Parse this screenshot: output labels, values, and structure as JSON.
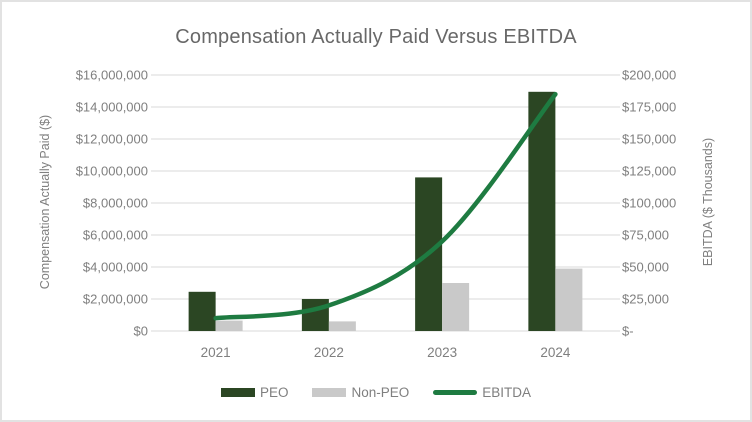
{
  "title": "Compensation Actually Paid Versus EBITDA",
  "chart_data": {
    "type": "bar",
    "subtype": "clustered-bar-with-smoothed-line-combo",
    "title": "Compensation Actually Paid Versus EBITDA",
    "categories": [
      "2021",
      "2022",
      "2023",
      "2024"
    ],
    "series": [
      {
        "name": "PEO",
        "kind": "bar",
        "axis": "left",
        "color": "#2b4623",
        "values": [
          2450000,
          2000000,
          9600000,
          14950000
        ]
      },
      {
        "name": "Non-PEO",
        "kind": "bar",
        "axis": "left",
        "color": "#c9c9c9",
        "values": [
          650000,
          600000,
          3000000,
          3900000
        ]
      },
      {
        "name": "EBITDA",
        "kind": "line",
        "axis": "right",
        "color": "#1e7b41",
        "values": [
          10000,
          20000,
          70000,
          185000
        ]
      }
    ],
    "left_axis": {
      "label": "Compensation Actually Paid ($)",
      "min": 0,
      "max": 16000000,
      "step": 2000000,
      "tick_labels_top_to_bottom": [
        "$16,000,000",
        "$14,000,000",
        "$12,000,000",
        "$10,000,000",
        "$8,000,000",
        "$6,000,000",
        "$4,000,000",
        "$2,000,000",
        "$0"
      ]
    },
    "right_axis": {
      "label": "EBITDA ($ Thousands)",
      "min": 0,
      "max": 200000,
      "step": 25000,
      "tick_labels_top_to_bottom": [
        "$200,000",
        "$175,000",
        "$150,000",
        "$125,000",
        "$100,000",
        "$75,000",
        "$50,000",
        "$25,000",
        "$-"
      ]
    },
    "grid": true,
    "legend_position": "bottom",
    "legend_entries": [
      "PEO",
      "Non-PEO",
      "EBITDA"
    ]
  },
  "colors": {
    "peo_bar": "#2b4623",
    "non_peo_bar": "#c9c9c9",
    "ebitda_line": "#1e7b41",
    "gridline": "#d9d9d9",
    "tick_text": "#7f7f7f",
    "title_text": "#686868",
    "frame_border": "#e2e2e2",
    "background": "#ffffff"
  }
}
